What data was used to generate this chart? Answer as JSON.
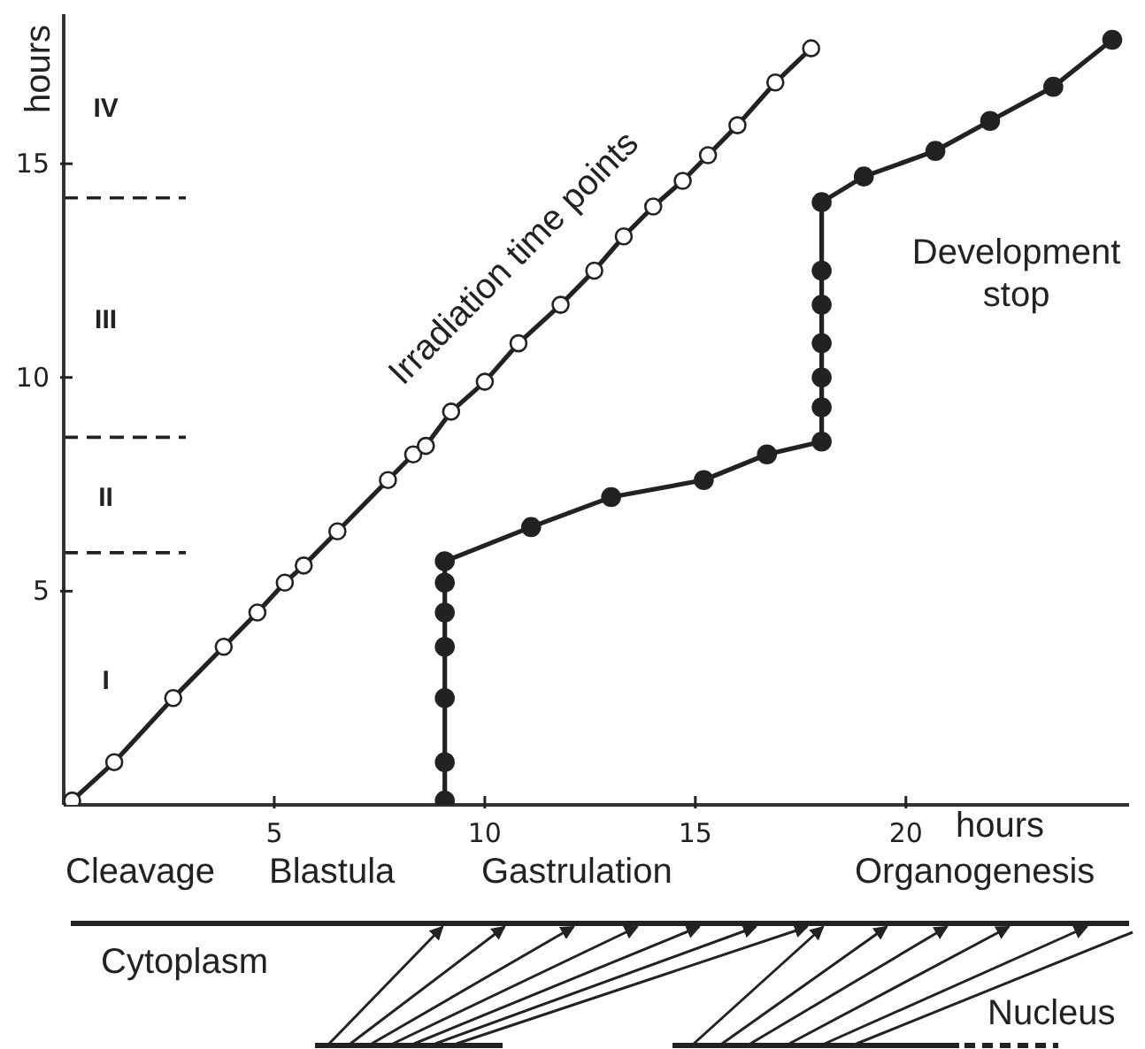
{
  "chart_data": {
    "type": "line",
    "xlabel": "hours",
    "ylabel": "hours",
    "xlim": [
      0,
      25.3
    ],
    "ylim": [
      0,
      18.5
    ],
    "xticks": [
      5,
      10,
      15,
      20
    ],
    "yticks": [
      5,
      10,
      15
    ],
    "marker": "circle",
    "line_style": "solid",
    "grid": false,
    "legend": false,
    "series": [
      {
        "name": "Irradiation time points",
        "color": "#222222",
        "x": [
          0.2,
          1.2,
          2.6,
          3.8,
          4.6,
          5.25,
          5.7,
          6.5,
          7.7,
          8.3,
          8.6,
          9.2,
          10.0,
          10.8,
          11.8,
          12.6,
          13.3,
          14.0,
          14.7,
          15.3,
          16.0,
          16.9,
          17.75
        ],
        "values": [
          0.1,
          1.0,
          2.5,
          3.7,
          4.5,
          5.2,
          5.6,
          6.4,
          7.6,
          8.2,
          8.4,
          9.2,
          9.9,
          10.8,
          11.7,
          12.5,
          13.3,
          14.0,
          14.6,
          15.2,
          15.9,
          16.9,
          17.7
        ]
      },
      {
        "name": "Development stop",
        "color": "#222222",
        "x": [
          9.05,
          9.05,
          9.05,
          9.05,
          9.05,
          9.05,
          9.05,
          11.1,
          13.0,
          15.2,
          16.7,
          18.0,
          18.0,
          18.0,
          18.0,
          18.0,
          18.0,
          18.0,
          19.0,
          20.7,
          22.0,
          23.5,
          24.9
        ],
        "values": [
          0.1,
          1.0,
          2.5,
          3.7,
          4.5,
          5.2,
          5.7,
          6.5,
          7.2,
          7.6,
          8.2,
          8.5,
          9.3,
          10.0,
          10.8,
          11.7,
          12.5,
          14.1,
          14.7,
          15.3,
          16.0,
          16.8,
          17.9
        ]
      }
    ],
    "ref_lines": [
      {
        "axis": "y",
        "value": 5.9,
        "line_style": "dashed"
      },
      {
        "axis": "y",
        "value": 8.6,
        "line_style": "dashed"
      },
      {
        "axis": "y",
        "value": 14.2,
        "line_style": "dashed"
      }
    ],
    "annotations": [
      "I",
      "II",
      "III",
      "IV",
      "Cleavage",
      "Blastula",
      "Gastrulation",
      "Organogenesis",
      "Cytoplasm",
      "Nucleus"
    ]
  }
}
